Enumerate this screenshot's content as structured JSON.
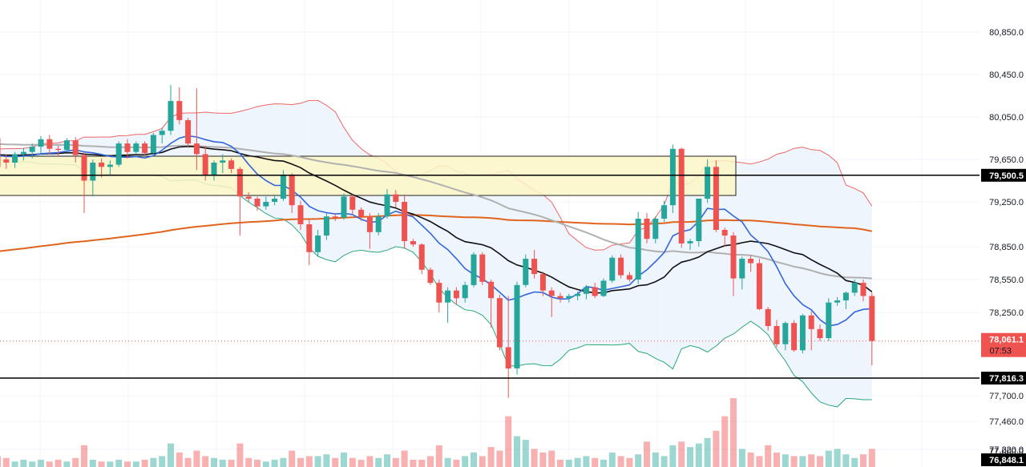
{
  "chart_data": {
    "type": "candlestick",
    "price_axis": {
      "ticks": [
        "80,850.0",
        "80,450.0",
        "80,050.0",
        "79,650.0",
        "79,250.0",
        "78,850.0",
        "78,550.0",
        "78,250.0",
        "77,700.0",
        "77,460.0",
        "77,220.0",
        "77,000.0"
      ],
      "tick_values": [
        80850,
        80450,
        80050,
        79650,
        79250,
        78850,
        78550,
        78250,
        77700,
        77460,
        77220,
        77000
      ]
    },
    "levels": {
      "resistance": {
        "value": 79500.5,
        "label": "79,500.5"
      },
      "support": {
        "value": 77816.3,
        "label": "77,816.3"
      },
      "last_price": {
        "value": 78061.1,
        "label": "78,061.1",
        "countdown": "07:53"
      },
      "volume_tag": {
        "label": "76,848.1"
      }
    },
    "zone": {
      "top": 79680,
      "bottom": 79310
    },
    "colors": {
      "up": "#26a69a",
      "down": "#ef5350",
      "ma_fast": "#3366dd",
      "ma_mid": "#111111",
      "ma_slow": "#b0b0b0",
      "ma_long": "#e0641e",
      "bb_upper": "#ef6666",
      "bb_lower": "#2aa77a",
      "bb_fill": "#e8f2fb",
      "zone_fill": "#fbf6c6",
      "zone_stroke": "#222222"
    },
    "candles": [
      [
        79850,
        79880,
        79520,
        79580
      ],
      [
        79650,
        79700,
        79560,
        79620
      ],
      [
        79620,
        79720,
        79570,
        79700
      ],
      [
        79700,
        79760,
        79640,
        79720
      ],
      [
        79720,
        79800,
        79660,
        79770
      ],
      [
        79770,
        79870,
        79700,
        79840
      ],
      [
        79840,
        79880,
        79700,
        79750
      ],
      [
        79750,
        79780,
        79680,
        79740
      ],
      [
        79740,
        79850,
        79720,
        79830
      ],
      [
        79830,
        79860,
        79620,
        79690
      ],
      [
        79690,
        79720,
        79150,
        79450
      ],
      [
        79450,
        79650,
        79300,
        79620
      ],
      [
        79620,
        79660,
        79480,
        79580
      ],
      [
        79580,
        79640,
        79500,
        79600
      ],
      [
        79600,
        79820,
        79580,
        79800
      ],
      [
        79800,
        79840,
        79660,
        79720
      ],
      [
        79720,
        79820,
        79700,
        79800
      ],
      [
        79800,
        79820,
        79690,
        79710
      ],
      [
        79710,
        79900,
        79690,
        79880
      ],
      [
        79880,
        79950,
        79800,
        79920
      ],
      [
        79920,
        80350,
        79880,
        80200
      ],
      [
        80200,
        80330,
        79980,
        80020
      ],
      [
        80020,
        80040,
        79760,
        79800
      ],
      [
        79800,
        80320,
        79550,
        79700
      ],
      [
        79700,
        79780,
        79450,
        79500
      ],
      [
        79500,
        79640,
        79450,
        79620
      ],
      [
        79620,
        79700,
        79520,
        79640
      ],
      [
        79640,
        79660,
        79520,
        79560
      ],
      [
        79560,
        79580,
        78950,
        79300
      ],
      [
        79300,
        79340,
        79250,
        79280
      ],
      [
        79280,
        79300,
        79170,
        79210
      ],
      [
        79210,
        79300,
        79180,
        79250
      ],
      [
        79250,
        79320,
        79220,
        79280
      ],
      [
        79280,
        79550,
        79260,
        79500
      ],
      [
        79500,
        79520,
        79150,
        79220
      ],
      [
        79220,
        79260,
        79000,
        79050
      ],
      [
        79050,
        79090,
        78680,
        78800
      ],
      [
        78800,
        79000,
        78760,
        78950
      ],
      [
        78950,
        79150,
        78910,
        79120
      ],
      [
        79120,
        79150,
        79080,
        79110
      ],
      [
        79110,
        79330,
        79090,
        79300
      ],
      [
        79300,
        79320,
        79130,
        79180
      ],
      [
        79180,
        79200,
        79080,
        79120
      ],
      [
        79120,
        79150,
        78830,
        78980
      ],
      [
        78980,
        79150,
        78950,
        79120
      ],
      [
        79120,
        79370,
        79100,
        79320
      ],
      [
        79320,
        79360,
        79200,
        79250
      ],
      [
        79250,
        79320,
        78830,
        78900
      ],
      [
        78900,
        78920,
        78850,
        78870
      ],
      [
        78870,
        78880,
        78600,
        78640
      ],
      [
        78640,
        78660,
        78500,
        78520
      ],
      [
        78520,
        78550,
        78250,
        78340
      ],
      [
        78340,
        78480,
        78180,
        78450
      ],
      [
        78450,
        78480,
        78320,
        78380
      ],
      [
        78380,
        78530,
        78340,
        78500
      ],
      [
        78500,
        78800,
        78480,
        78780
      ],
      [
        78780,
        78800,
        78500,
        78530
      ],
      [
        78530,
        78550,
        78150,
        78380
      ],
      [
        78380,
        78410,
        78000,
        78020
      ],
      [
        78020,
        78400,
        77680,
        77880
      ],
      [
        77880,
        78530,
        77840,
        78500
      ],
      [
        78500,
        78780,
        78480,
        78740
      ],
      [
        78740,
        78820,
        78560,
        78600
      ],
      [
        78600,
        78620,
        78400,
        78450
      ],
      [
        78450,
        78480,
        78220,
        78400
      ],
      [
        78400,
        78430,
        78340,
        78380
      ],
      [
        78380,
        78420,
        78340,
        78400
      ],
      [
        78400,
        78440,
        78360,
        78420
      ],
      [
        78420,
        78500,
        78370,
        78480
      ],
      [
        78480,
        78520,
        78380,
        78400
      ],
      [
        78400,
        78560,
        78390,
        78540
      ],
      [
        78540,
        78770,
        78520,
        78750
      ],
      [
        78750,
        78780,
        78560,
        78590
      ],
      [
        78590,
        78620,
        78530,
        78550
      ],
      [
        78550,
        79160,
        78510,
        79100
      ],
      [
        79100,
        79150,
        78880,
        78920
      ],
      [
        78920,
        79120,
        78880,
        79100
      ],
      [
        79100,
        79260,
        79070,
        79220
      ],
      [
        79220,
        79790,
        79150,
        79750
      ],
      [
        79750,
        79760,
        78840,
        78880
      ],
      [
        78880,
        78920,
        78820,
        78900
      ],
      [
        78900,
        79280,
        78850,
        79280
      ],
      [
        79280,
        79650,
        79240,
        79580
      ],
      [
        79580,
        79640,
        78980,
        79000
      ],
      [
        79000,
        79020,
        78850,
        78950
      ],
      [
        78950,
        78980,
        78400,
        78560
      ],
      [
        78560,
        78760,
        78460,
        78740
      ],
      [
        78740,
        78770,
        78620,
        78700
      ],
      [
        78700,
        78740,
        78270,
        78280
      ],
      [
        78280,
        78300,
        78130,
        78160
      ],
      [
        78160,
        78200,
        78020,
        78040
      ],
      [
        78040,
        78190,
        78000,
        78180
      ],
      [
        78180,
        78200,
        77990,
        78000
      ],
      [
        78000,
        78240,
        77980,
        78230
      ],
      [
        78230,
        78260,
        78000,
        78140
      ],
      [
        78140,
        78170,
        78060,
        78080
      ],
      [
        78080,
        78380,
        78060,
        78340
      ],
      [
        78340,
        78390,
        78310,
        78360
      ],
      [
        78360,
        78440,
        78280,
        78430
      ],
      [
        78430,
        78550,
        78400,
        78520
      ],
      [
        78520,
        78550,
        78350,
        78400
      ],
      [
        78400,
        78430,
        77900,
        78061.1
      ]
    ],
    "volumes": [
      6,
      5,
      3,
      4,
      3,
      4,
      3,
      4,
      3,
      5,
      12,
      4,
      3,
      3,
      4,
      3,
      3,
      4,
      5,
      6,
      13,
      8,
      5,
      9,
      6,
      5,
      4,
      4,
      13,
      5,
      4,
      3,
      4,
      5,
      9,
      5,
      6,
      6,
      7,
      5,
      8,
      5,
      4,
      6,
      5,
      7,
      5,
      9,
      4,
      4,
      6,
      12,
      5,
      4,
      6,
      8,
      6,
      11,
      9,
      28,
      17,
      15,
      10,
      8,
      9,
      4,
      4,
      5,
      6,
      5,
      4,
      8,
      6,
      5,
      7,
      14,
      8,
      6,
      12,
      14,
      11,
      13,
      16,
      20,
      28,
      38,
      10,
      8,
      6,
      12,
      8,
      7,
      6,
      6,
      7,
      6,
      9,
      10,
      7,
      5,
      7,
      10
    ]
  }
}
